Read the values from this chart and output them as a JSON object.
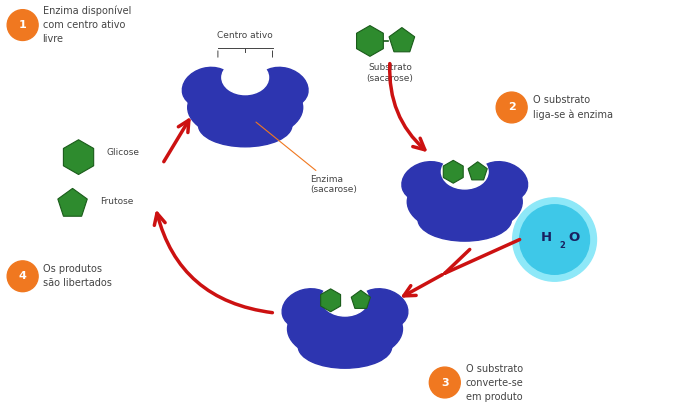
{
  "bg_color": "#ffffff",
  "enzyme_color": "#2d35b0",
  "enzyme_shadow": "#1a208a",
  "substrate_color": "#2e8b2e",
  "substrate_edge": "#1a5c1a",
  "arrow_color": "#cc1111",
  "h2o_color": "#3ec8e8",
  "h2o_dark": "#1a9abf",
  "number_circle_color": "#f07820",
  "label_color": "#444444",
  "orange_label": "#f07820",
  "step1_label": "Enzima disponível\ncom centro ativo\nlivre",
  "step2_label": "O substrato\nliga-se à enzima",
  "step3_label": "O substrato\nconverte-se\nem produto",
  "step4_label": "Os produtos\nsão libertados",
  "centro_ativo_label": "Centro ativo",
  "enzima_label": "Enzima\n(sacarose)",
  "substrato_label": "Substrato\n(sacarose)",
  "glicose_label": "Glicose",
  "frutose_label": "Frutose",
  "figsize": [
    6.85,
    4.11
  ],
  "dpi": 100
}
